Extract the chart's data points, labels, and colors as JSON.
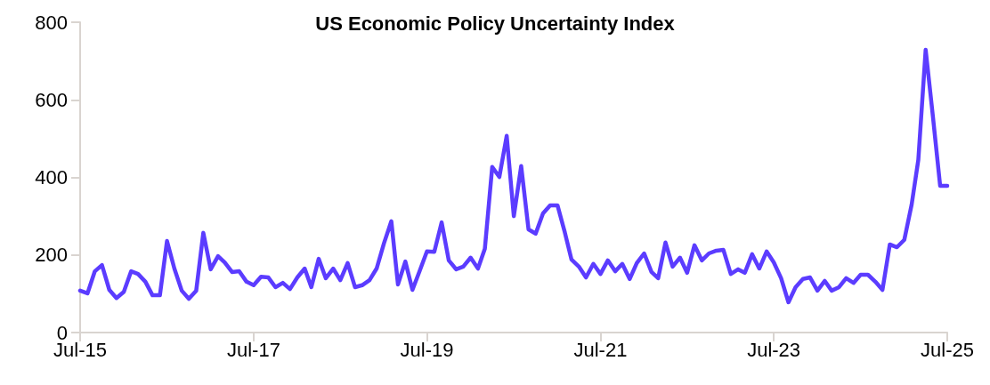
{
  "chart_data": {
    "type": "line",
    "title": "US Economic Policy Uncertainty Index",
    "x": [
      "2015-07",
      "2015-08",
      "2015-09",
      "2015-10",
      "2015-11",
      "2015-12",
      "2016-01",
      "2016-02",
      "2016-03",
      "2016-04",
      "2016-05",
      "2016-06",
      "2016-07",
      "2016-08",
      "2016-09",
      "2016-10",
      "2016-11",
      "2016-12",
      "2017-01",
      "2017-02",
      "2017-03",
      "2017-04",
      "2017-05",
      "2017-06",
      "2017-07",
      "2017-08",
      "2017-09",
      "2017-10",
      "2017-11",
      "2017-12",
      "2018-01",
      "2018-02",
      "2018-03",
      "2018-04",
      "2018-05",
      "2018-06",
      "2018-07",
      "2018-08",
      "2018-09",
      "2018-10",
      "2018-11",
      "2018-12",
      "2019-01",
      "2019-02",
      "2019-03",
      "2019-04",
      "2019-05",
      "2019-06",
      "2019-07",
      "2019-08",
      "2019-09",
      "2019-10",
      "2019-11",
      "2019-12",
      "2020-01",
      "2020-02",
      "2020-03",
      "2020-04",
      "2020-05",
      "2020-06",
      "2020-07",
      "2020-08",
      "2020-09",
      "2020-10",
      "2020-11",
      "2020-12",
      "2021-01",
      "2021-02",
      "2021-03",
      "2021-04",
      "2021-05",
      "2021-06",
      "2021-07",
      "2021-08",
      "2021-09",
      "2021-10",
      "2021-11",
      "2021-12",
      "2022-01",
      "2022-02",
      "2022-03",
      "2022-04",
      "2022-05",
      "2022-06",
      "2022-07",
      "2022-08",
      "2022-09",
      "2022-10",
      "2022-11",
      "2022-12",
      "2023-01",
      "2023-02",
      "2023-03",
      "2023-04",
      "2023-05",
      "2023-06",
      "2023-07",
      "2023-08",
      "2023-09",
      "2023-10",
      "2023-11",
      "2023-12",
      "2024-01",
      "2024-02",
      "2024-03",
      "2024-04",
      "2024-05",
      "2024-06",
      "2024-07",
      "2024-08",
      "2024-09",
      "2024-10",
      "2024-11",
      "2024-12",
      "2025-01",
      "2025-02",
      "2025-03",
      "2025-04",
      "2025-05",
      "2025-06",
      "2025-07"
    ],
    "series": [
      {
        "color": "#5b3cff",
        "values": [
          108,
          101,
          158,
          174,
          110,
          89,
          105,
          158,
          151,
          131,
          96,
          96,
          236,
          165,
          108,
          87,
          108,
          257,
          163,
          197,
          181,
          156,
          158,
          131,
          122,
          144,
          142,
          117,
          128,
          112,
          142,
          165,
          117,
          190,
          140,
          165,
          135,
          179,
          117,
          122,
          135,
          165,
          230,
          287,
          124,
          183,
          110,
          160,
          209,
          208,
          284,
          186,
          163,
          170,
          193,
          165,
          216,
          427,
          401,
          507,
          300,
          429,
          266,
          255,
          307,
          328,
          328,
          258,
          188,
          170,
          142,
          177,
          151,
          186,
          158,
          177,
          138,
          179,
          204,
          156,
          140,
          232,
          170,
          193,
          154,
          225,
          186,
          204,
          211,
          213,
          151,
          163,
          154,
          202,
          165,
          209,
          181,
          140,
          78,
          117,
          138,
          142,
          108,
          133,
          108,
          117,
          140,
          128,
          149,
          149,
          131,
          110,
          227,
          220,
          239,
          330,
          445,
          729,
          560,
          378,
          378
        ]
      }
    ],
    "xlim": [
      "2015-07",
      "2025-07"
    ],
    "xticks": [
      {
        "value": "2015-07",
        "label": "Jul-15"
      },
      {
        "value": "2017-07",
        "label": "Jul-17"
      },
      {
        "value": "2019-07",
        "label": "Jul-19"
      },
      {
        "value": "2021-07",
        "label": "Jul-21"
      },
      {
        "value": "2023-07",
        "label": "Jul-23"
      },
      {
        "value": "2025-07",
        "label": "Jul-25"
      }
    ],
    "ylim": [
      0,
      800
    ],
    "yticks": [
      0,
      200,
      400,
      600,
      800
    ],
    "grid": false,
    "marker": "none",
    "line_style": "solid"
  }
}
